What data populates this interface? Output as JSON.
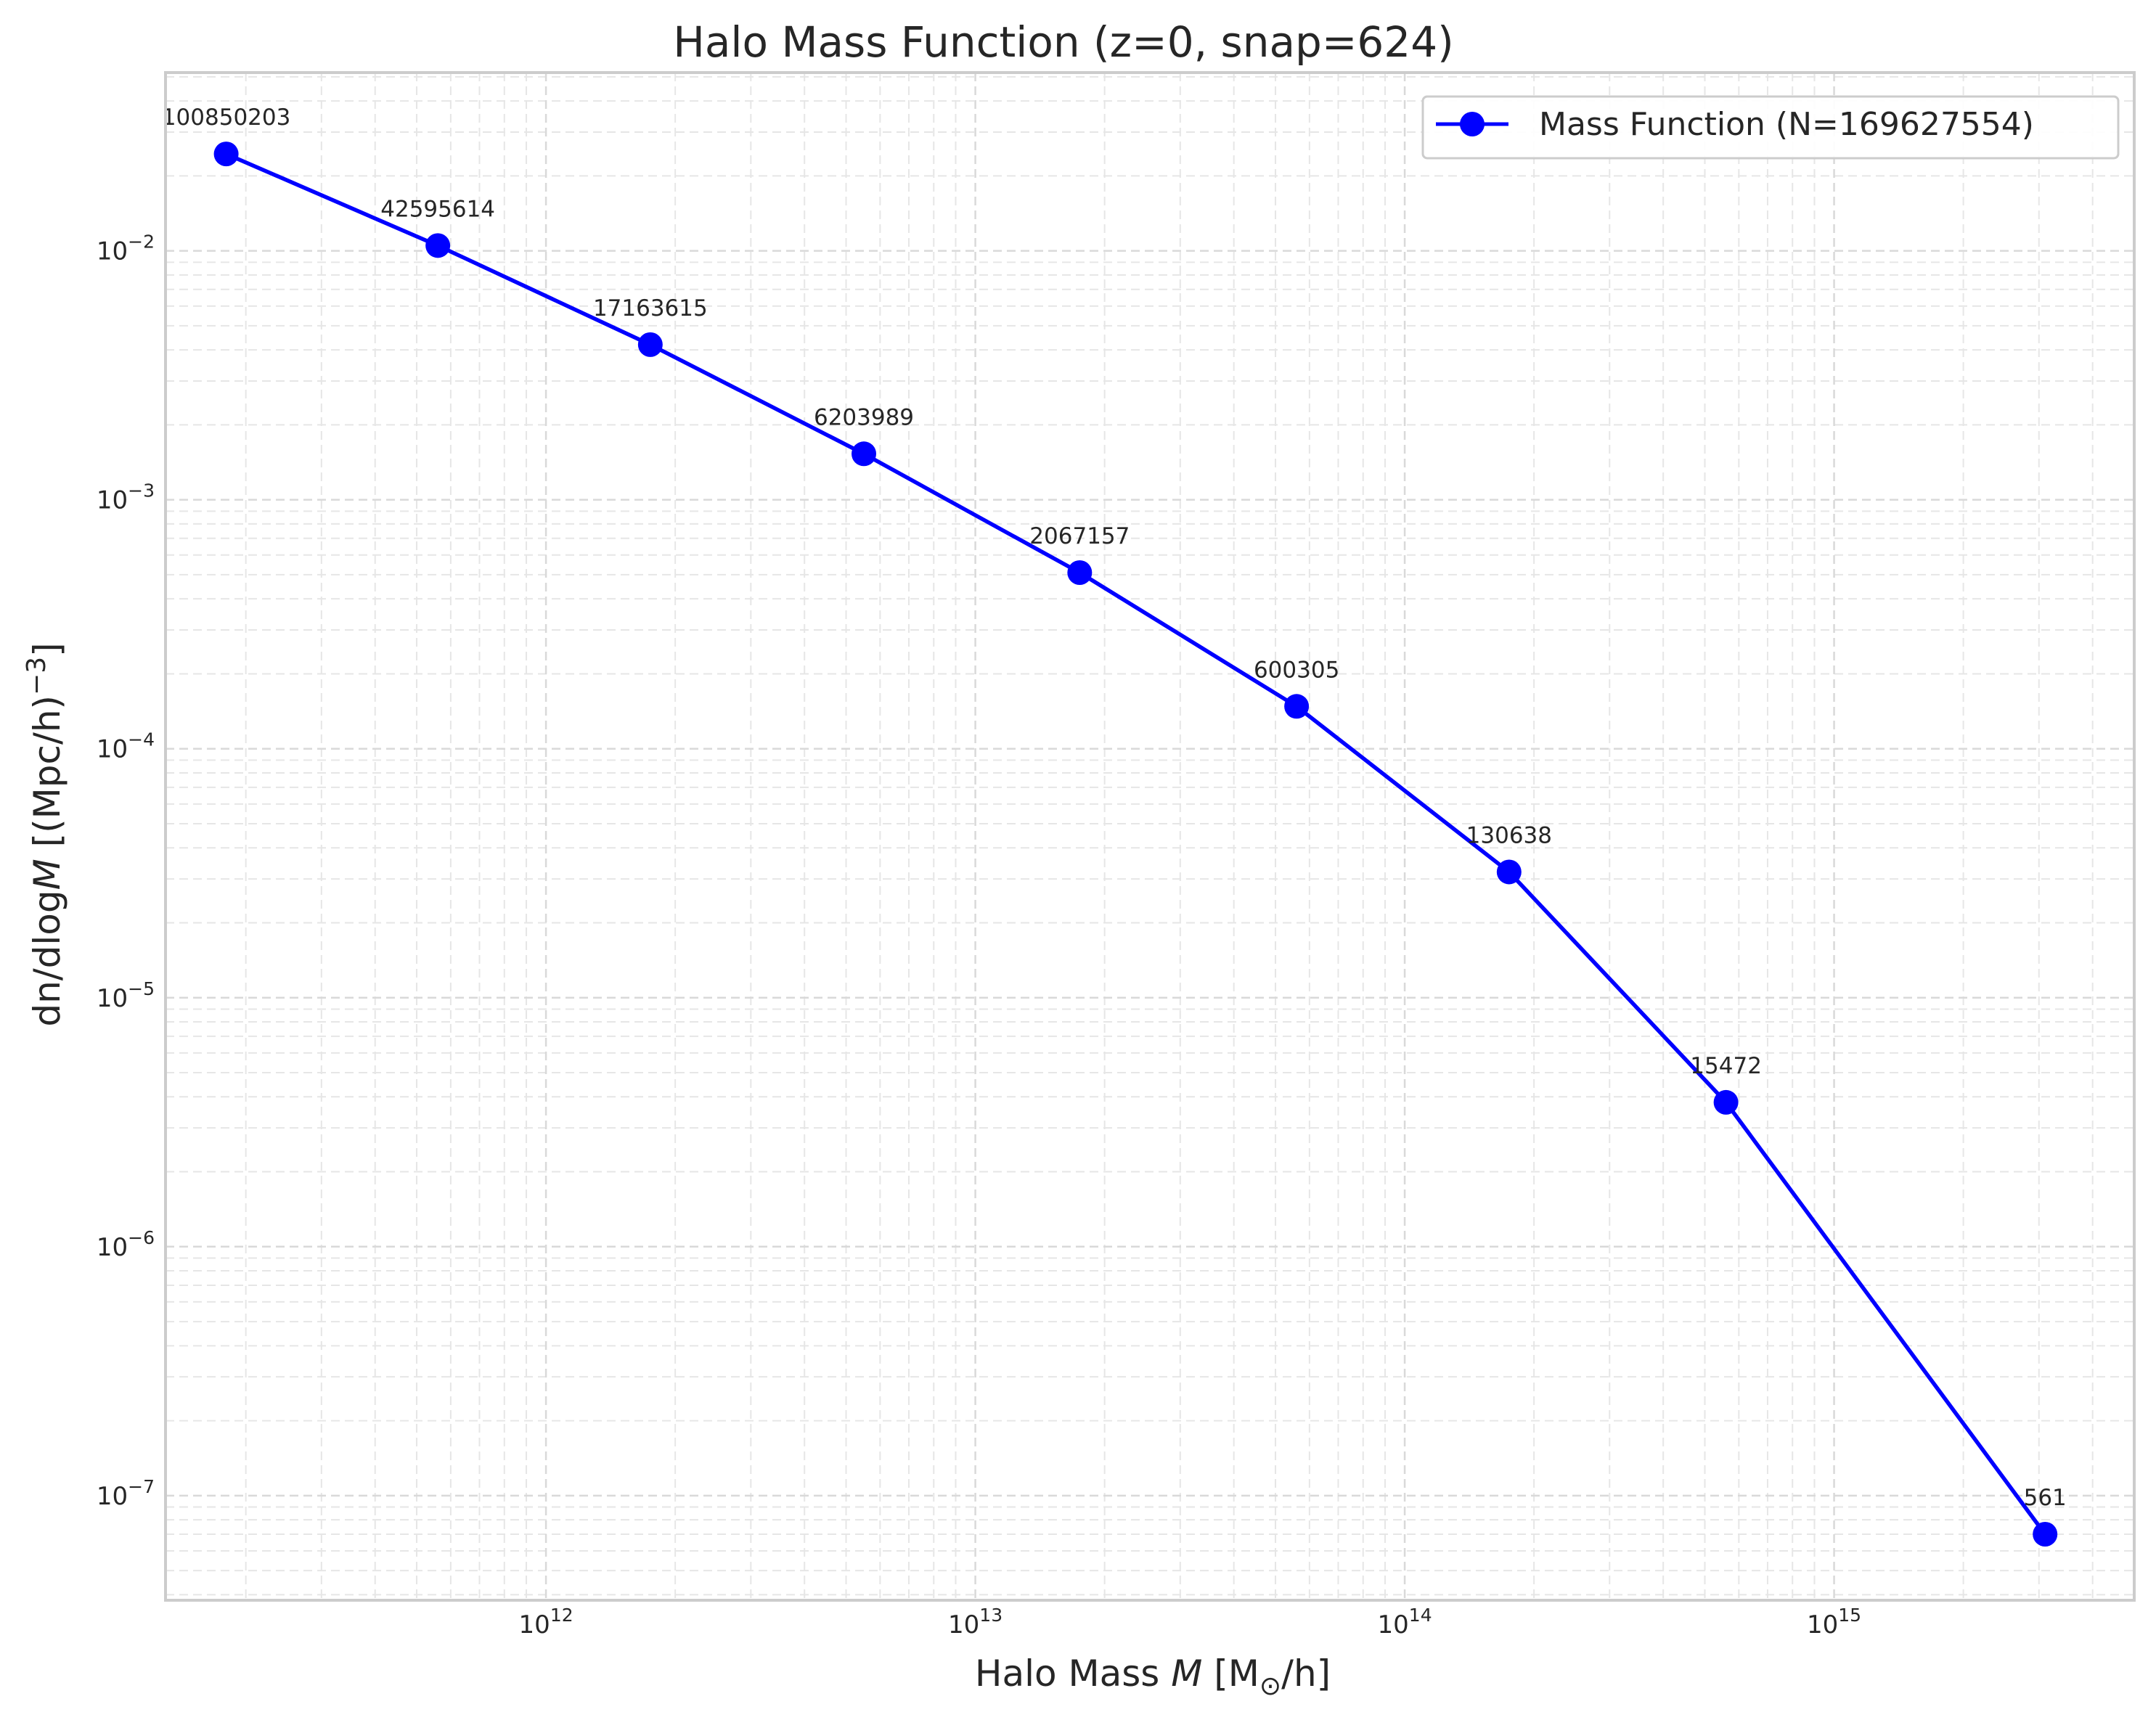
{
  "chart_data": {
    "type": "line",
    "title": "Halo Mass Function (z=0, snap=624)",
    "xlabel": "Halo Mass M [M⊙/h]",
    "ylabel": "dn/dlogM [(Mpc/h)⁻³]",
    "x_scale": "log",
    "y_scale": "log",
    "xlim": [
      130000000000.0,
      5000000000000000.0
    ],
    "ylim": [
      3.8e-08,
      0.052
    ],
    "x_ticks": [
      {
        "value": 1000000000000.0,
        "base": "10",
        "exp": "12"
      },
      {
        "value": 10000000000000.0,
        "base": "10",
        "exp": "13"
      },
      {
        "value": 100000000000000.0,
        "base": "10",
        "exp": "14"
      },
      {
        "value": 1000000000000000.0,
        "base": "10",
        "exp": "15"
      }
    ],
    "y_ticks": [
      {
        "value": 0.01,
        "base": "10",
        "exp": "−2"
      },
      {
        "value": 0.001,
        "base": "10",
        "exp": "−3"
      },
      {
        "value": 0.0001,
        "base": "10",
        "exp": "−4"
      },
      {
        "value": 1e-05,
        "base": "10",
        "exp": "−5"
      },
      {
        "value": 1e-06,
        "base": "10",
        "exp": "−6"
      },
      {
        "value": 1e-07,
        "base": "10",
        "exp": "−7"
      }
    ],
    "grid": true,
    "legend_position": "top-right",
    "series": [
      {
        "name": "Mass Function (N=169627554)",
        "color": "#0000ff",
        "marker": "circle",
        "x": [
          180000000000.0,
          560000000000.0,
          1750000000000.0,
          5500000000000.0,
          17500000000000.0,
          56000000000000.0,
          175000000000000.0,
          560000000000000.0,
          3100000000000000.0
        ],
        "y": [
          0.0245,
          0.0105,
          0.0042,
          0.00153,
          0.00051,
          0.000148,
          3.2e-05,
          3.8e-06,
          7e-08
        ],
        "labels": [
          "100850203",
          "42595614",
          "17163615",
          "6203989",
          "2067157",
          "600305",
          "130638",
          "15472",
          "561"
        ]
      }
    ]
  }
}
